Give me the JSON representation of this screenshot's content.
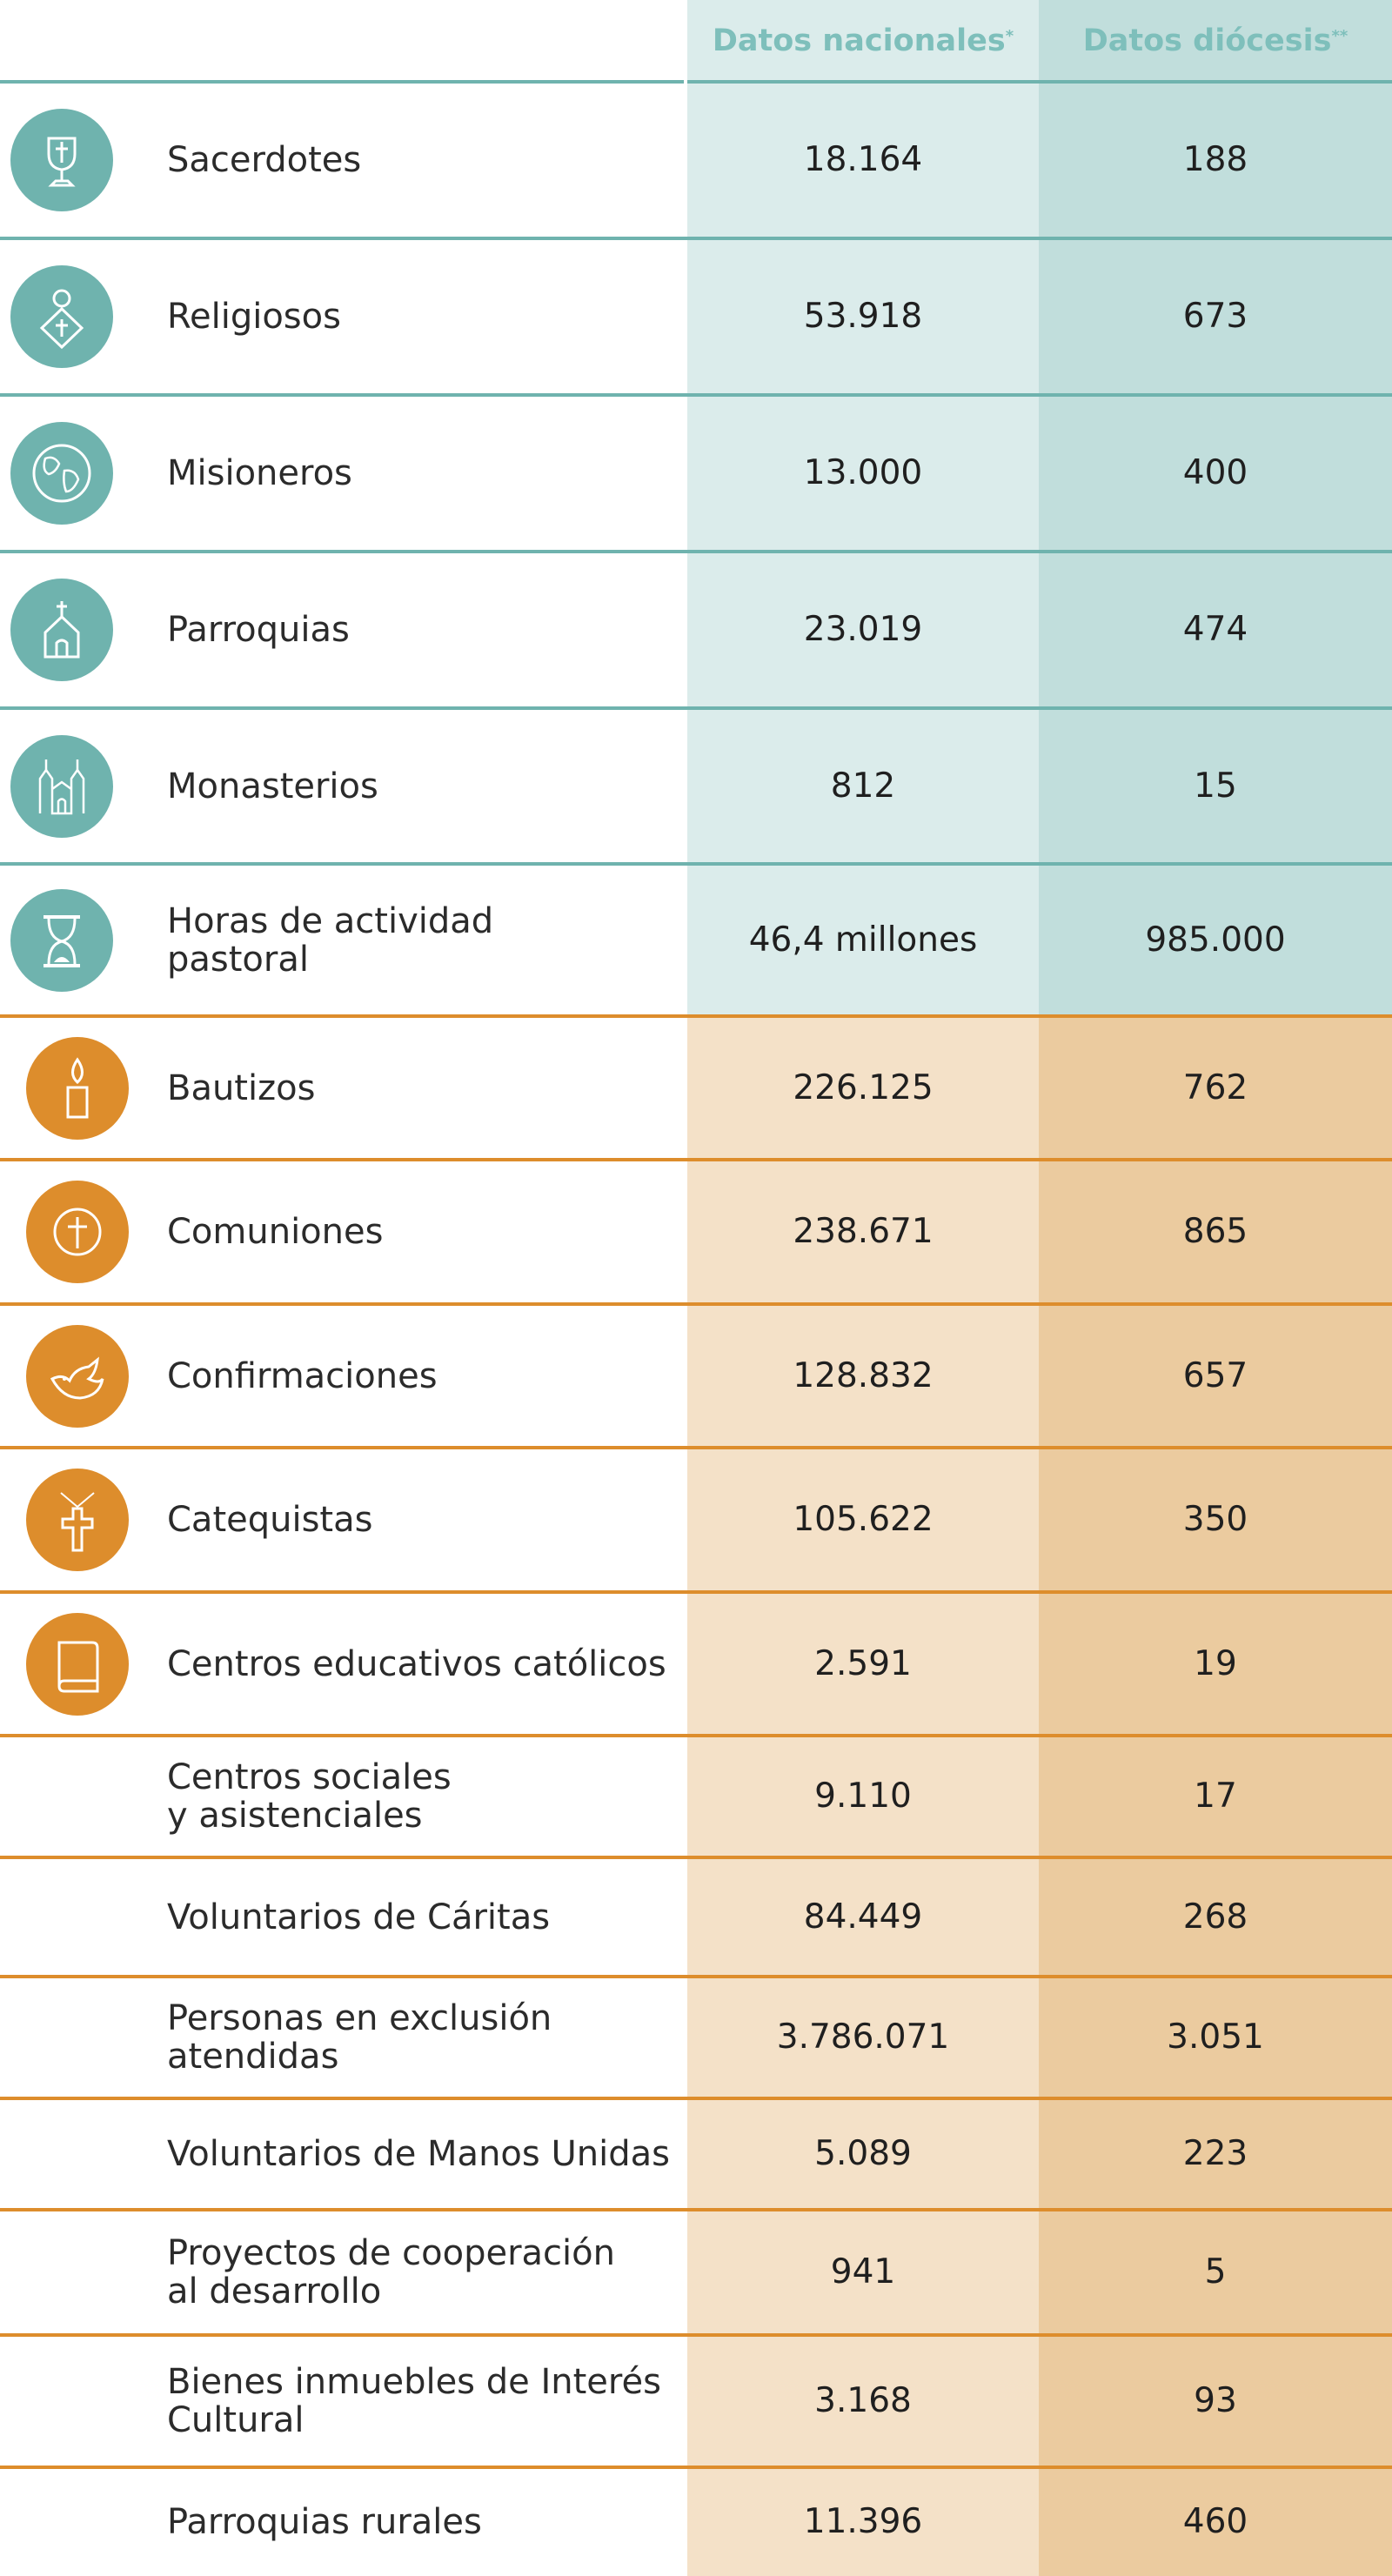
{
  "headers": {
    "national": "Datos nacionales",
    "national_mark": "*",
    "diocese": "Datos diócesis",
    "diocese_mark": "**"
  },
  "colors": {
    "teal": "#6fb3ae",
    "teal_light": "#dbeceb",
    "teal_dark": "#c1dedc",
    "orange": "#dd8d2c",
    "orange_light": "#f4e1c8",
    "orange_dark": "#ebcb9f",
    "header_text": "#7ebfbb"
  },
  "rows": [
    {
      "label": "Sacerdotes",
      "national": "18.164",
      "diocese": "188",
      "icon": "chalice-icon",
      "theme": "teal"
    },
    {
      "label": "Religiosos",
      "national": "53.918",
      "diocese": "673",
      "icon": "religious-person-icon",
      "theme": "teal"
    },
    {
      "label": "Misioneros",
      "national": "13.000",
      "diocese": "400",
      "icon": "globe-icon",
      "theme": "teal"
    },
    {
      "label": "Parroquias",
      "national": "23.019",
      "diocese": "474",
      "icon": "church-icon",
      "theme": "teal"
    },
    {
      "label": "Monasterios",
      "national": "812",
      "diocese": "15",
      "icon": "monastery-icon",
      "theme": "teal"
    },
    {
      "label": "Horas de actividad\npastoral",
      "national": "46,4 millones",
      "diocese": "985.000",
      "icon": "hourglass-icon",
      "theme": "teal"
    },
    {
      "label": "Bautizos",
      "national": "226.125",
      "diocese": "762",
      "icon": "candle-icon",
      "theme": "orange"
    },
    {
      "label": "Comuniones",
      "national": "238.671",
      "diocese": "865",
      "icon": "host-icon",
      "theme": "orange"
    },
    {
      "label": "Confirmaciones",
      "national": "128.832",
      "diocese": "657",
      "icon": "dove-icon",
      "theme": "orange"
    },
    {
      "label": "Catequistas",
      "national": "105.622",
      "diocese": "350",
      "icon": "cross-pendant-icon",
      "theme": "orange"
    },
    {
      "label": "Centros educativos católicos",
      "national": "2.591",
      "diocese": "19",
      "icon": "book-icon",
      "theme": "orange"
    },
    {
      "label": "Centros sociales\ny asistenciales",
      "national": "9.110",
      "diocese": "17",
      "icon": "",
      "theme": "orange"
    },
    {
      "label": "Voluntarios de Cáritas",
      "national": "84.449",
      "diocese": "268",
      "icon": "",
      "theme": "orange"
    },
    {
      "label": "Personas en exclusión\natendidas",
      "national": "3.786.071",
      "diocese": "3.051",
      "icon": "",
      "theme": "orange"
    },
    {
      "label": "Voluntarios de Manos Unidas",
      "national": "5.089",
      "diocese": "223",
      "icon": "",
      "theme": "orange"
    },
    {
      "label": "Proyectos de cooperación\nal desarrollo",
      "national": "941",
      "diocese": "5",
      "icon": "",
      "theme": "orange"
    },
    {
      "label": "Bienes inmuebles de Interés\nCultural",
      "national": "3.168",
      "diocese": "93",
      "icon": "",
      "theme": "orange"
    },
    {
      "label": "Parroquias rurales",
      "national": "11.396",
      "diocese": "460",
      "icon": "",
      "theme": "orange"
    }
  ]
}
